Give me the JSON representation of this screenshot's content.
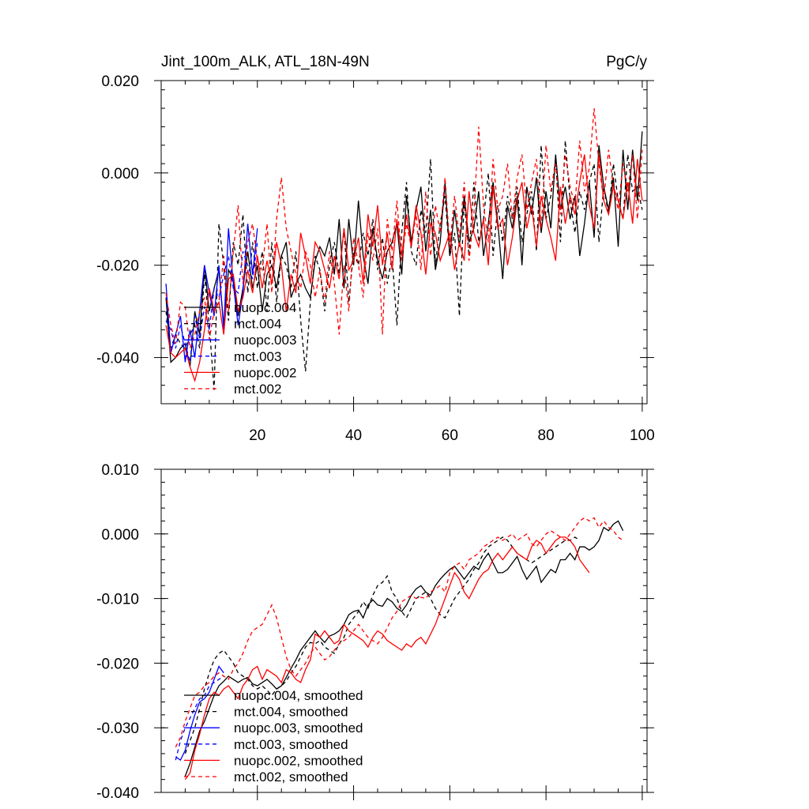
{
  "chart_data": [
    {
      "type": "line",
      "title": "Jint_100m_ALK, ATL_18N-49N",
      "units": "PgC/y",
      "xlabel": "",
      "ylabel": "",
      "xlim": [
        0,
        101
      ],
      "ylim": [
        -0.05,
        0.02
      ],
      "xticks": [
        20,
        40,
        60,
        80,
        100
      ],
      "yticks": [
        0.02,
        0.0,
        -0.02,
        -0.04
      ],
      "xtick_labels": [
        "20",
        "40",
        "60",
        "80",
        "100"
      ],
      "ytick_labels": [
        "0.020",
        "0.000",
        "-0.020",
        "-0.040"
      ],
      "legend_position": "bottom-left",
      "series": [
        {
          "name": "nuopc.004",
          "color": "#000000",
          "dash": "solid",
          "x_start": 1,
          "values": [
            -0.027,
            -0.041,
            -0.04,
            -0.038,
            -0.037,
            -0.042,
            -0.03,
            -0.035,
            -0.02,
            -0.03,
            -0.025,
            -0.021,
            -0.033,
            -0.021,
            -0.023,
            -0.031,
            -0.025,
            -0.017,
            -0.025,
            -0.02,
            -0.03,
            -0.022,
            -0.02,
            -0.025,
            -0.018,
            -0.015,
            -0.027,
            -0.024,
            -0.022,
            -0.025,
            -0.027,
            -0.019,
            -0.016,
            -0.018,
            -0.014,
            -0.022,
            -0.01,
            -0.025,
            -0.01,
            -0.02,
            -0.006,
            -0.018,
            -0.024,
            -0.012,
            -0.019,
            -0.023,
            -0.017,
            -0.015,
            -0.011,
            -0.022,
            -0.005,
            -0.015,
            -0.008,
            -0.003,
            -0.017,
            -0.008,
            -0.021,
            -0.015,
            -0.002,
            -0.018,
            -0.008,
            -0.016,
            -0.005,
            -0.015,
            -0.012,
            -0.004,
            -0.018,
            -0.011,
            -0.002,
            -0.011,
            -0.023,
            -0.007,
            -0.012,
            -0.005,
            -0.02,
            -0.003,
            -0.009,
            -0.001,
            -0.013,
            -0.004,
            -0.012,
            0.004,
            -0.008,
            -0.003,
            -0.01,
            -0.005,
            -0.018,
            -0.011,
            -0.002,
            -0.014,
            0.006,
            -0.003,
            -0.008,
            -0.001,
            -0.016,
            0.005,
            -0.008,
            0.005,
            -0.006,
            0.009
          ]
        },
        {
          "name": "mct.004",
          "color": "#000000",
          "dash": "dashed",
          "x_start": 1,
          "values": [
            -0.03,
            -0.038,
            -0.035,
            -0.037,
            -0.038,
            -0.035,
            -0.033,
            -0.038,
            -0.022,
            -0.033,
            -0.047,
            -0.011,
            -0.02,
            -0.032,
            -0.015,
            -0.02,
            -0.009,
            -0.026,
            -0.015,
            -0.025,
            -0.017,
            -0.03,
            -0.015,
            -0.028,
            -0.018,
            -0.02,
            -0.025,
            -0.017,
            -0.032,
            -0.043,
            -0.028,
            -0.018,
            -0.021,
            -0.03,
            -0.02,
            -0.015,
            -0.022,
            -0.012,
            -0.028,
            -0.017,
            -0.02,
            -0.013,
            -0.018,
            -0.01,
            -0.021,
            -0.014,
            -0.024,
            -0.018,
            -0.033,
            -0.013,
            -0.002,
            -0.017,
            -0.02,
            -0.008,
            -0.013,
            0.003,
            -0.02,
            -0.011,
            -0.005,
            -0.018,
            -0.013,
            -0.031,
            -0.006,
            -0.018,
            -0.002,
            -0.015,
            -0.01,
            0.0,
            -0.018,
            -0.007,
            -0.015,
            -0.005,
            -0.01,
            -0.003,
            -0.015,
            -0.009,
            -0.004,
            -0.017,
            0.006,
            -0.01,
            -0.005,
            0.003,
            -0.015,
            0.007,
            -0.006,
            -0.013,
            -0.004,
            -0.008,
            -0.002,
            0.002,
            -0.015,
            -0.003,
            -0.009,
            0.002,
            -0.006,
            -0.01,
            0.004,
            -0.004,
            -0.003,
            -0.008
          ]
        },
        {
          "name": "nuopc.003",
          "color": "#0000ff",
          "dash": "solid",
          "x_start": 1,
          "values": [
            -0.024,
            -0.039,
            -0.035,
            -0.031,
            -0.041,
            -0.034,
            -0.04,
            -0.03,
            -0.02,
            -0.026,
            -0.031,
            -0.02,
            -0.034,
            -0.012,
            -0.024,
            -0.033,
            -0.026,
            -0.011,
            -0.022,
            -0.012
          ]
        },
        {
          "name": "mct.003",
          "color": "#0000ff",
          "dash": "dashed",
          "x_start": 1,
          "values": [
            -0.032,
            -0.034,
            -0.038,
            -0.033,
            -0.037,
            -0.041,
            -0.031,
            -0.036,
            -0.029,
            -0.034,
            -0.025,
            -0.027,
            -0.022,
            -0.018,
            -0.025,
            -0.026,
            -0.017,
            -0.02,
            -0.023,
            -0.015
          ]
        },
        {
          "name": "nuopc.002",
          "color": "#ff0000",
          "dash": "solid",
          "x_start": 1,
          "values": [
            -0.033,
            -0.039,
            -0.04,
            -0.039,
            -0.038,
            -0.042,
            -0.045,
            -0.041,
            -0.034,
            -0.025,
            -0.03,
            -0.028,
            -0.035,
            -0.023,
            -0.022,
            -0.03,
            -0.027,
            -0.021,
            -0.026,
            -0.018,
            -0.025,
            -0.019,
            -0.024,
            -0.015,
            -0.02,
            -0.03,
            -0.022,
            -0.026,
            -0.013,
            -0.018,
            -0.024,
            -0.015,
            -0.017,
            -0.021,
            -0.025,
            -0.018,
            -0.023,
            -0.012,
            -0.021,
            -0.019,
            -0.014,
            -0.024,
            -0.009,
            -0.016,
            -0.007,
            -0.02,
            -0.013,
            -0.021,
            -0.01,
            -0.018,
            -0.009,
            -0.016,
            -0.007,
            -0.013,
            -0.022,
            -0.011,
            -0.013,
            -0.019,
            -0.016,
            -0.013,
            -0.021,
            -0.015,
            -0.019,
            -0.004,
            -0.013,
            -0.016,
            -0.01,
            -0.02,
            -0.003,
            -0.012,
            -0.01,
            -0.02,
            -0.014,
            -0.006,
            -0.002,
            -0.012,
            -0.007,
            -0.016,
            -0.005,
            -0.01,
            -0.014,
            -0.019,
            -0.003,
            -0.011,
            -0.005,
            -0.009,
            -0.002,
            0.004,
            -0.007,
            -0.012,
            0.004,
            -0.006,
            -0.009,
            -0.003,
            -0.006,
            -0.01,
            -0.002,
            -0.011,
            0.003,
            -0.006
          ]
        },
        {
          "name": "mct.002",
          "color": "#ff0000",
          "dash": "dashed",
          "x_start": 1,
          "values": [
            -0.026,
            -0.033,
            -0.037,
            -0.028,
            -0.029,
            -0.038,
            -0.035,
            -0.03,
            -0.027,
            -0.036,
            -0.03,
            -0.028,
            -0.018,
            -0.03,
            -0.017,
            -0.007,
            -0.024,
            -0.015,
            -0.011,
            -0.019,
            -0.021,
            -0.011,
            -0.026,
            -0.01,
            -0.001,
            -0.012,
            -0.017,
            -0.022,
            -0.025,
            -0.017,
            -0.02,
            -0.027,
            -0.021,
            -0.028,
            -0.017,
            -0.024,
            -0.035,
            -0.02,
            -0.03,
            -0.014,
            -0.02,
            -0.027,
            -0.013,
            -0.019,
            -0.012,
            -0.035,
            -0.01,
            -0.017,
            -0.006,
            -0.019,
            -0.011,
            -0.016,
            -0.009,
            -0.021,
            -0.004,
            -0.018,
            -0.007,
            -0.013,
            -0.001,
            -0.016,
            -0.005,
            -0.014,
            -0.002,
            -0.019,
            -0.009,
            0.01,
            -0.007,
            -0.015,
            0.003,
            -0.008,
            -0.005,
            0.002,
            -0.01,
            -0.001,
            0.004,
            -0.008,
            -0.002,
            0.003,
            -0.012,
            0.006,
            -0.004,
            0.002,
            -0.009,
            0.004,
            -0.003,
            -0.007,
            0.007,
            -0.004,
            0.001,
            0.014,
            0.002,
            -0.006,
            0.005,
            -0.003,
            -0.008,
            0.002,
            -0.004,
            0.004,
            -0.01,
            0.005
          ]
        }
      ]
    },
    {
      "type": "line",
      "title": "",
      "xlabel": "",
      "ylabel": "",
      "xlim": [
        0,
        101
      ],
      "ylim": [
        -0.04,
        0.01
      ],
      "xticks": [
        20,
        40,
        60,
        80,
        100
      ],
      "yticks": [
        0.01,
        0.0,
        -0.01,
        -0.02,
        -0.03,
        -0.04
      ],
      "xtick_labels": [],
      "ytick_labels": [
        "0.010",
        "0.000",
        "-0.010",
        "-0.020",
        "-0.030",
        "-0.040"
      ],
      "legend_position": "bottom-left",
      "series": [
        {
          "name": "nuopc.004, smoothed",
          "color": "#000000",
          "dash": "solid",
          "x_start": 5,
          "values": [
            -0.0375,
            -0.0355,
            -0.033,
            -0.0305,
            -0.029,
            -0.027,
            -0.025,
            -0.0235,
            -0.0228,
            -0.022,
            -0.0225,
            -0.023,
            -0.0225,
            -0.0222,
            -0.0232,
            -0.0235,
            -0.023,
            -0.0225,
            -0.0232,
            -0.024,
            -0.0235,
            -0.0222,
            -0.0208,
            -0.0195,
            -0.018,
            -0.017,
            -0.016,
            -0.015,
            -0.016,
            -0.0168,
            -0.0158,
            -0.0155,
            -0.015,
            -0.014,
            -0.0125,
            -0.012,
            -0.0118,
            -0.013,
            -0.011,
            -0.0102,
            -0.011,
            -0.0112,
            -0.01,
            -0.0105,
            -0.0115,
            -0.012,
            -0.011,
            -0.0095,
            -0.0085,
            -0.008,
            -0.009,
            -0.0095,
            -0.008,
            -0.007,
            -0.0062,
            -0.0055,
            -0.005,
            -0.006,
            -0.007,
            -0.006,
            -0.005,
            -0.0055,
            -0.004,
            -0.003,
            -0.0045,
            -0.006,
            -0.006,
            -0.0055,
            -0.0045,
            -0.0035,
            -0.0055,
            -0.007,
            -0.006,
            -0.005,
            -0.0075,
            -0.0065,
            -0.0055,
            -0.006,
            -0.004,
            -0.004,
            -0.003,
            -0.004,
            -0.002,
            -0.002,
            -0.0025,
            -0.002,
            -0.001,
            0.001,
            0.0005,
            0.0015,
            0.002,
            0.0005
          ]
        },
        {
          "name": "mct.004, smoothed",
          "color": "#000000",
          "dash": "dashed",
          "x_start": 5,
          "values": [
            -0.034,
            -0.032,
            -0.03,
            -0.027,
            -0.024,
            -0.0215,
            -0.0195,
            -0.0185,
            -0.018,
            -0.019,
            -0.02,
            -0.0215,
            -0.022,
            -0.0225,
            -0.0235,
            -0.024,
            -0.0235,
            -0.0242,
            -0.025,
            -0.024,
            -0.0235,
            -0.0228,
            -0.0215,
            -0.0205,
            -0.019,
            -0.0175,
            -0.0168,
            -0.017,
            -0.0165,
            -0.0175,
            -0.018,
            -0.0185,
            -0.017,
            -0.016,
            -0.014,
            -0.013,
            -0.012,
            -0.0105,
            -0.0115,
            -0.0095,
            -0.008,
            -0.0075,
            -0.0065,
            -0.009,
            -0.01,
            -0.012,
            -0.013,
            -0.0115,
            -0.01,
            -0.0095,
            -0.009,
            -0.01,
            -0.0115,
            -0.0125,
            -0.013,
            -0.0115,
            -0.01,
            -0.009,
            -0.008,
            -0.007,
            -0.0055,
            -0.0045,
            -0.003,
            -0.002,
            -0.0015,
            -0.001,
            -0.0005,
            -0.001,
            -0.002,
            -0.003,
            -0.0035,
            -0.004,
            -0.0045,
            -0.004,
            -0.0035,
            -0.003,
            -0.0025,
            -0.002,
            -0.0015,
            -0.001,
            -0.001,
            -0.0005,
            -0.001
          ]
        },
        {
          "name": "nuopc.003, smoothed",
          "color": "#0000ff",
          "dash": "solid",
          "x_start": 3,
          "values": [
            -0.0345,
            -0.035,
            -0.0335,
            -0.0305,
            -0.028,
            -0.026,
            -0.0255,
            -0.0245,
            -0.0225,
            -0.0205,
            -0.0215
          ]
        },
        {
          "name": "mct.003, smoothed",
          "color": "#0000ff",
          "dash": "dashed",
          "x_start": 3,
          "values": [
            -0.035,
            -0.032,
            -0.03,
            -0.0285,
            -0.027,
            -0.0255,
            -0.025,
            -0.0235,
            -0.023,
            -0.0225,
            -0.022
          ]
        },
        {
          "name": "nuopc.002, smoothed",
          "color": "#ff0000",
          "dash": "solid",
          "x_start": 5,
          "values": [
            -0.038,
            -0.037,
            -0.0335,
            -0.031,
            -0.028,
            -0.0255,
            -0.0245,
            -0.025,
            -0.024,
            -0.0235,
            -0.0245,
            -0.0255,
            -0.0235,
            -0.0225,
            -0.021,
            -0.0205,
            -0.0225,
            -0.021,
            -0.0215,
            -0.022,
            -0.023,
            -0.021,
            -0.0215,
            -0.0225,
            -0.023,
            -0.021,
            -0.0195,
            -0.0155,
            -0.016,
            -0.015,
            -0.016,
            -0.017,
            -0.0165,
            -0.014,
            -0.015,
            -0.0155,
            -0.016,
            -0.0165,
            -0.0175,
            -0.016,
            -0.015,
            -0.0155,
            -0.0165,
            -0.017,
            -0.0175,
            -0.018,
            -0.017,
            -0.0175,
            -0.0165,
            -0.016,
            -0.017,
            -0.0155,
            -0.014,
            -0.012,
            -0.01,
            -0.008,
            -0.006,
            -0.007,
            -0.009,
            -0.01,
            -0.0085,
            -0.007,
            -0.006,
            -0.0055,
            -0.004,
            -0.003,
            -0.004,
            -0.003,
            -0.002,
            -0.003,
            -0.0035,
            -0.004,
            -0.002,
            -0.001,
            -0.0015,
            -0.003,
            -0.002,
            -0.001,
            -0.0005,
            -0.0005,
            -0.001,
            -0.002,
            -0.004,
            -0.005,
            -0.006
          ]
        },
        {
          "name": "mct.002, smoothed",
          "color": "#ff0000",
          "dash": "dashed",
          "x_start": 3,
          "values": [
            -0.033,
            -0.0315,
            -0.029,
            -0.027,
            -0.025,
            -0.0245,
            -0.0235,
            -0.023,
            -0.022,
            -0.0215,
            -0.022,
            -0.0225,
            -0.021,
            -0.02,
            -0.0185,
            -0.0165,
            -0.015,
            -0.0145,
            -0.014,
            -0.0125,
            -0.011,
            -0.013,
            -0.016,
            -0.019,
            -0.021,
            -0.022,
            -0.021,
            -0.02,
            -0.0185,
            -0.0175,
            -0.0185,
            -0.0195,
            -0.019,
            -0.018,
            -0.017,
            -0.0165,
            -0.016,
            -0.015,
            -0.014,
            -0.015,
            -0.016,
            -0.0165,
            -0.017,
            -0.016,
            -0.0145,
            -0.013,
            -0.012,
            -0.0105,
            -0.01,
            -0.0095,
            -0.01,
            -0.0098,
            -0.01,
            -0.009,
            -0.0085,
            -0.008,
            -0.009,
            -0.006,
            -0.005,
            -0.0045,
            -0.0055,
            -0.004,
            -0.0035,
            -0.003,
            -0.002,
            -0.0015,
            -0.001,
            -0.0005,
            -0.001,
            -0.0005,
            0.0,
            -0.001,
            -0.0005,
            0.0,
            -0.0015,
            -0.002,
            -0.001,
            0.0,
            0.0005,
            0.0,
            -0.0005,
            -0.001,
            0.0,
            0.001,
            0.002,
            0.0025,
            0.002,
            0.0025,
            0.001,
            0.002,
            0.001,
            0.0005,
            -0.0005,
            -0.001
          ]
        }
      ]
    }
  ]
}
